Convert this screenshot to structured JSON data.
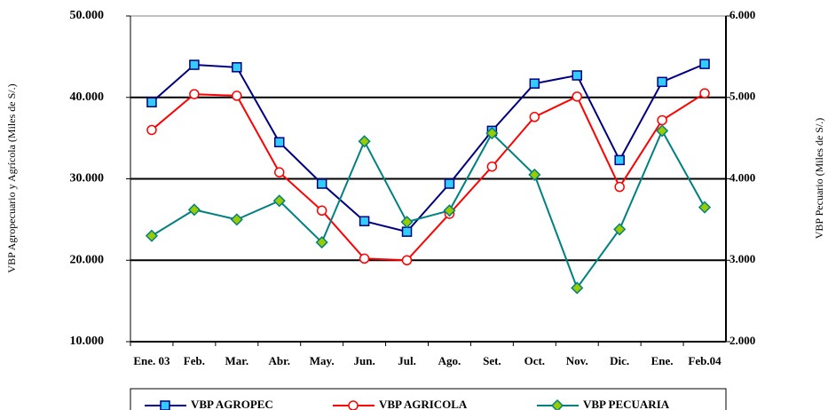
{
  "chart_data": {
    "type": "line",
    "y_label": "VBP Agropecuario y Agrícola (Miles de S/.)",
    "y2_label": "VBP Pecuario (Miles de S/.)",
    "categories": [
      "Ene. 03",
      "Feb.",
      "Mar.",
      "Abr.",
      "May.",
      "Jun.",
      "Jul.",
      "Ago.",
      "Set.",
      "Oct.",
      "Nov.",
      "Dic.",
      "Ene.",
      "Feb.04"
    ],
    "series": [
      {
        "name": "VBP AGROPEC",
        "color": "#000080",
        "marker": "square",
        "marker_fill": "#33ccff",
        "values": [
          39400,
          44000,
          43700,
          34500,
          29400,
          24800,
          23500,
          29400,
          35900,
          41700,
          42700,
          32300,
          41900,
          44100
        ]
      },
      {
        "name": "VBP AGRICOLA",
        "color": "#ff0000",
        "marker": "circle",
        "marker_fill": "#ffffff",
        "values": [
          36000,
          40400,
          40200,
          30800,
          26100,
          20200,
          20000,
          25700,
          31500,
          37600,
          40100,
          29000,
          37200,
          40500
        ]
      },
      {
        "name": "VBP PECUARIA",
        "color": "#008080",
        "marker": "diamond",
        "marker_fill": "#99cc00",
        "axis": "y2",
        "values": [
          3300,
          3620,
          3500,
          3730,
          3220,
          4460,
          3470,
          3610,
          4560,
          4050,
          2660,
          3380,
          4590,
          3650
        ]
      }
    ],
    "ylim": [
      10000,
      50000
    ],
    "yticks": [
      {
        "value": 10000,
        "label": "10.000"
      },
      {
        "value": 20000,
        "label": "20.000"
      },
      {
        "value": 30000,
        "label": "30.000"
      },
      {
        "value": 40000,
        "label": "40.000"
      },
      {
        "value": 50000,
        "label": "50.000"
      }
    ],
    "y2lim": [
      2000,
      6000
    ],
    "y2ticks": [
      {
        "value": 2000,
        "label": "2.000"
      },
      {
        "value": 3000,
        "label": "3.000"
      },
      {
        "value": 4000,
        "label": "4.000"
      },
      {
        "value": 5000,
        "label": "5.000"
      },
      {
        "value": 6000,
        "label": "6.000"
      }
    ],
    "grid": true,
    "legend": "bottom"
  }
}
